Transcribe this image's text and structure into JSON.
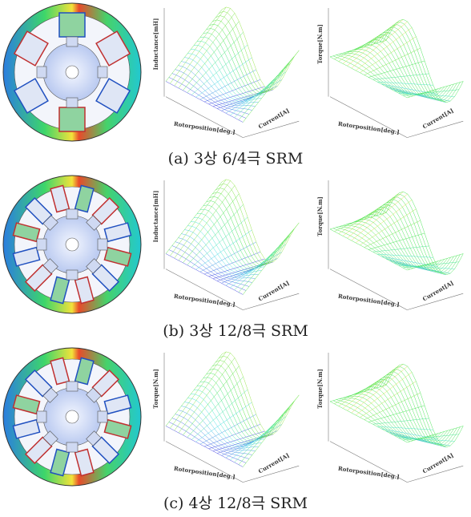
{
  "figure": {
    "panels": [
      {
        "caption": "(a) 3상 6/4극 SRM",
        "plots": [
          {
            "z_label": "Inductance[mH]",
            "x_label": "Rotorposition[deg.]",
            "y_label": "Current[A]"
          },
          {
            "z_label": "Torque[N.m]",
            "x_label": "Rotorposition[deg.]",
            "y_label": "Current[A]"
          }
        ]
      },
      {
        "caption": "(b) 3상 12/8극 SRM",
        "plots": [
          {
            "z_label": "Inductance[mH]",
            "x_label": "Rotorposition[deg.]",
            "y_label": "Current[A]"
          },
          {
            "z_label": "Torque[N.m]",
            "x_label": "Rotorposition[deg.]",
            "y_label": "Current[A]"
          }
        ]
      },
      {
        "caption": "(c) 4상 12/8극 SRM",
        "plots": [
          {
            "z_label": "Torque[N.m]",
            "x_label": "Rotorposition[deg.]",
            "y_label": "Current[A]"
          },
          {
            "z_label": "Torque[N.m]",
            "x_label": "Rotorposition[deg.]",
            "y_label": "Current[A]"
          }
        ]
      }
    ]
  }
}
